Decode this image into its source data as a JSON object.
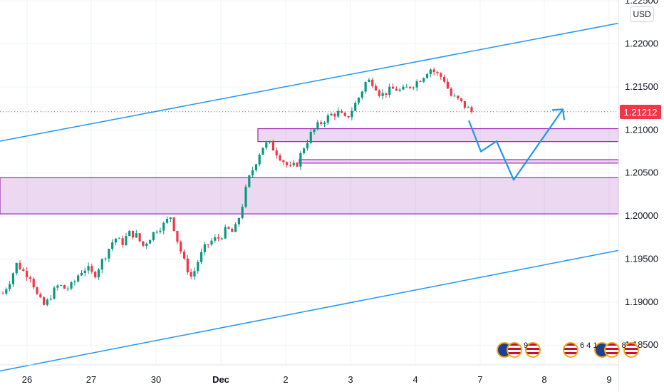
{
  "chart_data": {
    "type": "candlestick",
    "y_axis": {
      "ticks": [
        "1.22500",
        "1.22000",
        "1.21500",
        "1.21000",
        "1.20500",
        "1.20000",
        "1.19500",
        "1.19000",
        "1.18500"
      ],
      "range": [
        1.1827,
        1.2251
      ],
      "unit": "USD"
    },
    "x_axis": {
      "ticks": [
        {
          "label": "26",
          "bold": false
        },
        {
          "label": "27",
          "bold": false
        },
        {
          "label": "30",
          "bold": false
        },
        {
          "label": "Dec",
          "bold": true
        },
        {
          "label": "2",
          "bold": false
        },
        {
          "label": "3",
          "bold": false
        },
        {
          "label": "4",
          "bold": false
        },
        {
          "label": "7",
          "bold": false
        },
        {
          "label": "8",
          "bold": false
        },
        {
          "label": "9",
          "bold": false
        }
      ]
    },
    "last_price": {
      "label": "1.21212",
      "value": 1.21212,
      "color": "#f23645"
    },
    "up_color": "#089981",
    "down_color": "#f23645",
    "price_path": [
      1.191,
      1.1925,
      1.1945,
      1.1935,
      1.193,
      1.1905,
      1.1895,
      1.191,
      1.192,
      1.1915,
      1.192,
      1.1935,
      1.194,
      1.193,
      1.1945,
      1.196,
      1.1975,
      1.1968,
      1.198,
      1.1978,
      1.1965,
      1.1975,
      1.1985,
      1.199,
      1.2,
      1.197,
      1.1945,
      1.1928,
      1.195,
      1.1965,
      1.1972,
      1.1975,
      1.1985,
      1.198,
      1.2005,
      1.204,
      1.206,
      1.208,
      1.2085,
      1.2075,
      1.2065,
      1.2055,
      1.206,
      1.208,
      1.2095,
      1.2105,
      1.2112,
      1.2118,
      1.212,
      1.2112,
      1.2125,
      1.214,
      1.2158,
      1.2155,
      1.214,
      1.2145,
      1.2148,
      1.2145,
      1.215,
      1.2155,
      1.2162,
      1.2172,
      1.2165,
      1.216,
      1.214,
      1.2135,
      1.2128,
      1.21212
    ],
    "zones": [
      {
        "name": "upper-zone",
        "from": 1.20865,
        "to": 1.21015
      },
      {
        "name": "thin-zone",
        "from": 1.20615,
        "to": 1.20655
      },
      {
        "name": "wide-zone",
        "from": 1.20025,
        "to": 1.20445
      }
    ],
    "zone_color": "#9c27b0",
    "channel_color": "#2196f3",
    "channel_lines": [
      {
        "name": "channel-upper-line",
        "start": {
          "period": "left-edge",
          "value": 1.2087
        },
        "end": {
          "period": "right-edge",
          "value": 1.2224
        }
      },
      {
        "name": "channel-lower-line",
        "start": {
          "period": "left-edge",
          "value": 1.182
        },
        "end": {
          "period": "right-edge",
          "value": 1.196
        }
      }
    ],
    "projection_path": [
      1.2111,
      1.2075,
      1.2087,
      1.2042,
      1.2124
    ],
    "events": [
      {
        "name": "event-group-1",
        "badges": [
          "EU",
          "US",
          "US"
        ],
        "count": "9"
      },
      {
        "name": "event-group-2",
        "badges": [
          "US",
          "EU",
          "US",
          "US"
        ],
        "count": "6 4 1",
        "count2": "8"
      }
    ]
  }
}
